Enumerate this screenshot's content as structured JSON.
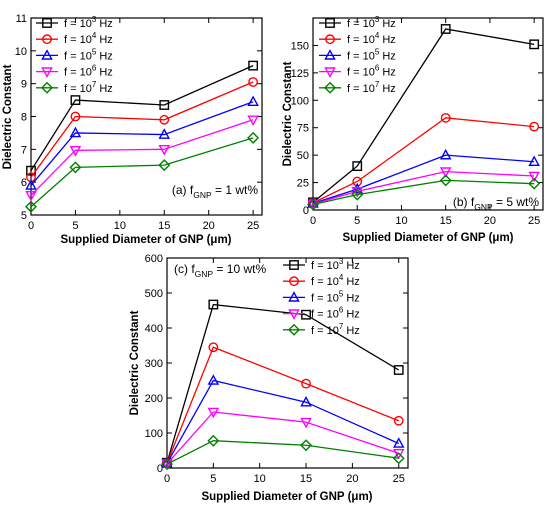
{
  "chart_data": [
    {
      "type": "line",
      "panel_label": "(a) f",
      "panel_sub": "GNP",
      "panel_suffix": " = 1 wt%",
      "xlabel": "Supplied Diameter of GNP (μm)",
      "ylabel": "Dielectric Constant",
      "x": [
        0,
        5,
        15,
        25
      ],
      "xlim": [
        0,
        26
      ],
      "ylim": [
        5,
        11
      ],
      "xticks": [
        0,
        5,
        10,
        15,
        20,
        25
      ],
      "yticks": [
        5,
        6,
        7,
        8,
        9,
        10,
        11
      ],
      "legend_position": "top-left",
      "series": [
        {
          "name": "f = 10^3 Hz",
          "name_base": "f = 10",
          "name_exp": "3",
          "name_unit": " Hz",
          "values": [
            6.35,
            8.5,
            8.35,
            9.55
          ]
        },
        {
          "name": "f = 10^4 Hz",
          "name_base": "f = 10",
          "name_exp": "4",
          "name_unit": " Hz",
          "values": [
            6.15,
            8.0,
            7.9,
            9.05
          ]
        },
        {
          "name": "f = 10^5 Hz",
          "name_base": "f = 10",
          "name_exp": "5",
          "name_unit": " Hz",
          "values": [
            5.9,
            7.5,
            7.45,
            8.45
          ]
        },
        {
          "name": "f = 10^6 Hz",
          "name_base": "f = 10",
          "name_exp": "6",
          "name_unit": " Hz",
          "values": [
            5.6,
            6.97,
            7.0,
            7.9
          ]
        },
        {
          "name": "f = 10^7 Hz",
          "name_base": "f = 10",
          "name_exp": "7",
          "name_unit": " Hz",
          "values": [
            5.25,
            6.45,
            6.52,
            7.35
          ]
        }
      ]
    },
    {
      "type": "line",
      "panel_label": "(b) f",
      "panel_sub": "GNP",
      "panel_suffix": " = 5 wt%",
      "xlabel": "Supplied Diameter of GNP (μm)",
      "ylabel": "Dielectric Constant",
      "x": [
        0,
        5,
        15,
        25
      ],
      "xlim": [
        0,
        26
      ],
      "ylim": [
        0,
        175
      ],
      "xticks": [
        0,
        5,
        10,
        15,
        20,
        25
      ],
      "yticks": [
        0,
        25,
        50,
        75,
        100,
        125,
        150
      ],
      "legend_position": "top-left",
      "series": [
        {
          "name": "f = 10^3 Hz",
          "name_base": "f = 10",
          "name_exp": "3",
          "name_unit": " Hz",
          "values": [
            7,
            40,
            165,
            151
          ]
        },
        {
          "name": "f = 10^4 Hz",
          "name_base": "f = 10",
          "name_exp": "4",
          "name_unit": " Hz",
          "values": [
            6.5,
            26,
            84,
            76
          ]
        },
        {
          "name": "f = 10^5 Hz",
          "name_base": "f = 10",
          "name_exp": "5",
          "name_unit": " Hz",
          "values": [
            6,
            19,
            50,
            44
          ]
        },
        {
          "name": "f = 10^6 Hz",
          "name_base": "f = 10",
          "name_exp": "6",
          "name_unit": " Hz",
          "values": [
            5.5,
            17,
            35,
            31
          ]
        },
        {
          "name": "f = 10^7 Hz",
          "name_base": "f = 10",
          "name_exp": "7",
          "name_unit": " Hz",
          "values": [
            5,
            14,
            27,
            24
          ]
        }
      ]
    },
    {
      "type": "line",
      "panel_label": "(c) f",
      "panel_sub": "GNP",
      "panel_suffix": " = 10 wt%",
      "xlabel": "Supplied Diameter of GNP (μm)",
      "ylabel": "Dielectric Constant",
      "x": [
        0,
        5,
        15,
        25
      ],
      "xlim": [
        0,
        26
      ],
      "ylim": [
        0,
        600
      ],
      "xticks": [
        0,
        5,
        10,
        15,
        20,
        25
      ],
      "yticks": [
        0,
        100,
        200,
        300,
        400,
        500,
        600
      ],
      "legend_position": "top-right",
      "series": [
        {
          "name": "f = 10^3 Hz",
          "name_base": "f = 10",
          "name_exp": "3",
          "name_unit": " Hz",
          "values": [
            15,
            467,
            438,
            280
          ]
        },
        {
          "name": "f = 10^4 Hz",
          "name_base": "f = 10",
          "name_exp": "4",
          "name_unit": " Hz",
          "values": [
            14,
            345,
            241,
            135
          ]
        },
        {
          "name": "f = 10^5 Hz",
          "name_base": "f = 10",
          "name_exp": "5",
          "name_unit": " Hz",
          "values": [
            13,
            250,
            188,
            70
          ]
        },
        {
          "name": "f = 10^6 Hz",
          "name_base": "f = 10",
          "name_exp": "6",
          "name_unit": " Hz",
          "values": [
            12,
            160,
            131,
            42
          ]
        },
        {
          "name": "f = 10^7 Hz",
          "name_base": "f = 10",
          "name_exp": "7",
          "name_unit": " Hz",
          "values": [
            11,
            78,
            65,
            28
          ]
        }
      ]
    }
  ],
  "series_styles": [
    {
      "color": "#000000",
      "marker": "square"
    },
    {
      "color": "#ff0000",
      "marker": "circle"
    },
    {
      "color": "#0000ff",
      "marker": "triangle-up"
    },
    {
      "color": "#ff00ff",
      "marker": "triangle-down"
    },
    {
      "color": "#008000",
      "marker": "diamond"
    }
  ]
}
